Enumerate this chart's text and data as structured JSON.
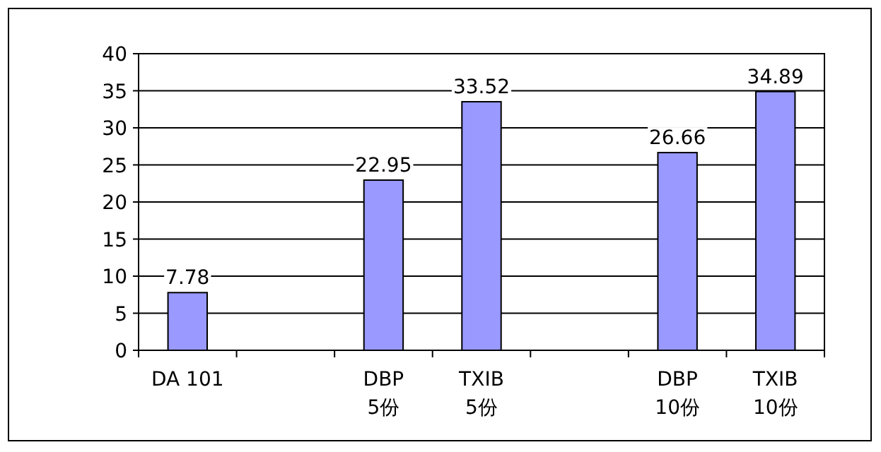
{
  "chart_data": {
    "type": "bar",
    "categories": [
      "DA 101",
      null,
      "DBP\n5份",
      "TXIB\n5份",
      null,
      "DBP\n10份",
      "TXIB\n10份"
    ],
    "values": [
      7.78,
      null,
      22.95,
      33.52,
      null,
      26.66,
      34.89
    ],
    "color": "#9999ff",
    "ylim": [
      0,
      40
    ],
    "yticks": [
      0,
      5,
      10,
      15,
      20,
      25,
      30,
      35,
      40
    ],
    "grid": "y",
    "data_labels": true
  }
}
